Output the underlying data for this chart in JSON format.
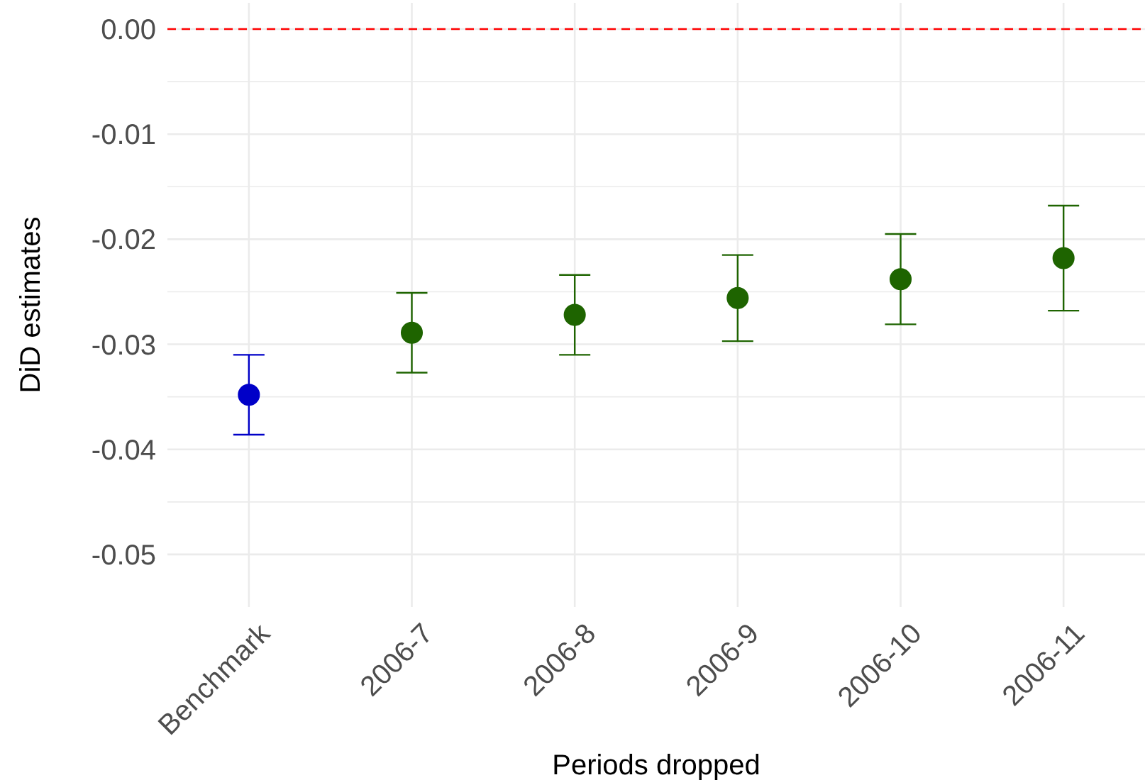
{
  "chart_data": {
    "type": "scatter",
    "xlabel": "Periods dropped",
    "ylabel": "DiD estimates",
    "categories": [
      "Benchmark",
      "2006-7",
      "2006-8",
      "2006-9",
      "2006-10",
      "2006-11"
    ],
    "values": [
      -0.0348,
      -0.0289,
      -0.0272,
      -0.0256,
      -0.0238,
      -0.0218
    ],
    "errors": [
      0.0038,
      0.0038,
      0.0038,
      0.0041,
      0.0043,
      0.005
    ],
    "colors": [
      "#0000c8",
      "#1e6400",
      "#1e6400",
      "#1e6400",
      "#1e6400",
      "#1e6400"
    ],
    "marker": "circle",
    "ylim": [
      -0.055,
      0.0025
    ],
    "yticks": [
      {
        "value": -0.05,
        "label": "-0.05"
      },
      {
        "value": -0.045,
        "label": null
      },
      {
        "value": -0.04,
        "label": "-0.04"
      },
      {
        "value": -0.035,
        "label": null
      },
      {
        "value": -0.03,
        "label": "-0.03"
      },
      {
        "value": -0.025,
        "label": null
      },
      {
        "value": -0.02,
        "label": "-0.02"
      },
      {
        "value": -0.015,
        "label": null
      },
      {
        "value": -0.01,
        "label": "-0.01"
      },
      {
        "value": -0.005,
        "label": null
      },
      {
        "value": 0,
        "label": "0.00"
      }
    ],
    "ref_lines": [
      {
        "axis": "y",
        "value": 0,
        "color": "#ff0000",
        "line_style": "dashed"
      }
    ],
    "grid": true
  }
}
